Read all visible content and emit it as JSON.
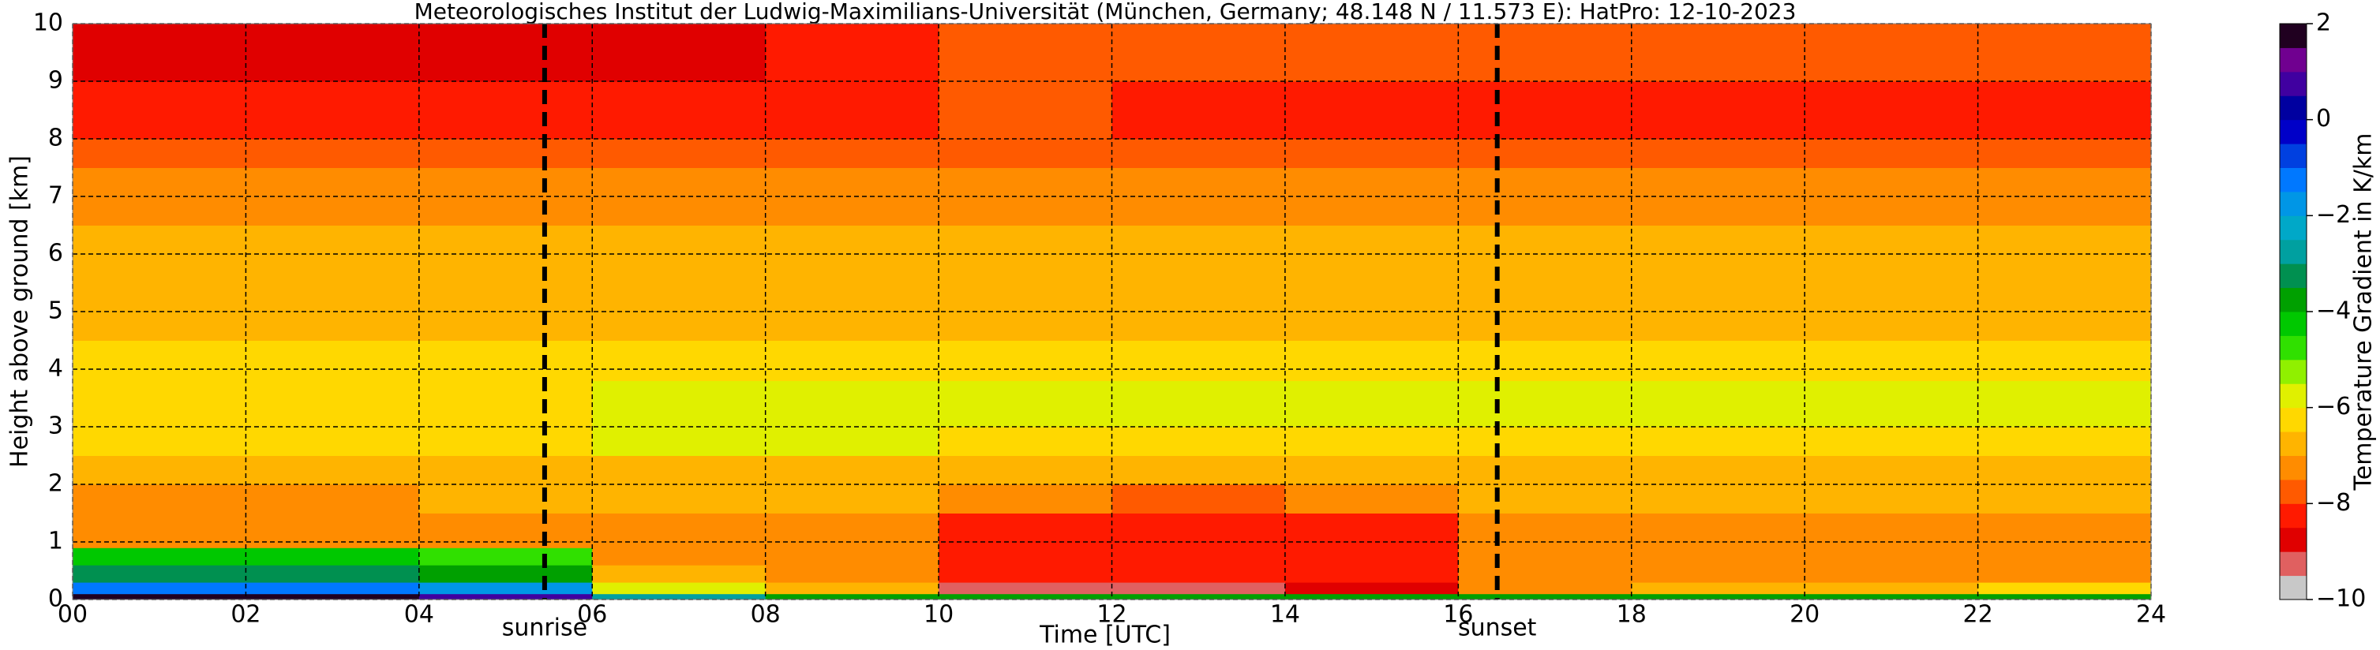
{
  "chart_data": {
    "type": "heatmap",
    "title": "Meteorologisches Institut der Ludwig-Maximilians-Universität (München, Germany; 48.148 N / 11.573 E):    HatPro: 12-10-2023",
    "xlabel": "Time [UTC]",
    "ylabel": "Height above ground [km]",
    "colorbar_label": "Temperature Gradient in K/km",
    "xlim": [
      0,
      24
    ],
    "ylim": [
      0,
      10
    ],
    "zlim": [
      -10,
      2
    ],
    "xticks": [
      {
        "value": 0,
        "label": "00"
      },
      {
        "value": 2,
        "label": "02"
      },
      {
        "value": 4,
        "label": "04"
      },
      {
        "value": 6,
        "label": "06"
      },
      {
        "value": 8,
        "label": "08"
      },
      10,
      12,
      14,
      16,
      18,
      20,
      22,
      24
    ],
    "yticks": [
      0,
      1,
      2,
      3,
      4,
      5,
      6,
      7,
      8,
      9,
      10
    ],
    "zticks": [
      {
        "value": -10,
        "label": "−10"
      },
      {
        "value": -8,
        "label": "−8"
      },
      {
        "value": -6,
        "label": "−6"
      },
      {
        "value": -4,
        "label": "−4"
      },
      {
        "value": -2,
        "label": "−2"
      },
      0,
      2
    ],
    "grid": true,
    "vlines": [
      {
        "x": 5.45,
        "label": "sunrise"
      },
      {
        "x": 16.45,
        "label": "sunset"
      }
    ],
    "colorscale": [
      {
        "value": -10,
        "color": "#c8c8c8"
      },
      {
        "value": -9.5,
        "color": "#e06060"
      },
      {
        "value": -9,
        "color": "#e00000"
      },
      {
        "value": -8.5,
        "color": "#ff1a00"
      },
      {
        "value": -8,
        "color": "#ff5a00"
      },
      {
        "value": -7.5,
        "color": "#ff8c00"
      },
      {
        "value": -7,
        "color": "#ffb400"
      },
      {
        "value": -6.5,
        "color": "#ffd800"
      },
      {
        "value": -6,
        "color": "#e0f000"
      },
      {
        "value": -5.5,
        "color": "#90f000"
      },
      {
        "value": -5,
        "color": "#30e000"
      },
      {
        "value": -4.5,
        "color": "#00c800"
      },
      {
        "value": -4,
        "color": "#00a000"
      },
      {
        "value": -3.5,
        "color": "#009050"
      },
      {
        "value": -3,
        "color": "#00a0a0"
      },
      {
        "value": -2.5,
        "color": "#00a8c8"
      },
      {
        "value": -2,
        "color": "#0096e6"
      },
      {
        "value": -1.5,
        "color": "#0078ff"
      },
      {
        "value": -1,
        "color": "#0040e0"
      },
      {
        "value": -0.5,
        "color": "#0000c8"
      },
      {
        "value": 0,
        "color": "#0000a0"
      },
      {
        "value": 0.5,
        "color": "#4000a0"
      },
      {
        "value": 1,
        "color": "#700090"
      },
      {
        "value": 1.5,
        "color": "#200020"
      }
    ],
    "x_edges": [
      0,
      2,
      4,
      6,
      8,
      10,
      12,
      14,
      16,
      18,
      20,
      22,
      24
    ],
    "y_edges": [
      0,
      0.1,
      0.3,
      0.6,
      0.9,
      1.5,
      2,
      2.5,
      3,
      3.8,
      4.5,
      5.5,
      6.5,
      7.5,
      8,
      9,
      10
    ],
    "z": [
      [
        1.5,
        1.5,
        0.5,
        -3,
        -4,
        -4,
        -4,
        -4,
        -4,
        -4,
        -4,
        -4
      ],
      [
        -1.5,
        -1.5,
        -2,
        -6,
        -7,
        -9.5,
        -9.5,
        -9,
        -7.5,
        -7,
        -7,
        -6.5
      ],
      [
        -3.5,
        -3.5,
        -4,
        -7,
        -7.5,
        -8.5,
        -8.5,
        -8.5,
        -7.5,
        -7.5,
        -7.5,
        -7.5
      ],
      [
        -4.5,
        -4.5,
        -5,
        -7.5,
        -7.5,
        -8.5,
        -8.5,
        -8.5,
        -7.5,
        -7.5,
        -7.5,
        -7.5
      ],
      [
        -7.5,
        -7.5,
        -7.5,
        -7.5,
        -7.5,
        -8.5,
        -8.5,
        -8.2,
        -7.5,
        -7.5,
        -7.5,
        -7.5
      ],
      [
        -7.2,
        -7.2,
        -7,
        -7,
        -7,
        -7.5,
        -7.8,
        -7.5,
        -7,
        -7,
        -7,
        -7
      ],
      [
        -6.8,
        -6.8,
        -6.8,
        -6.8,
        -6.8,
        -6.8,
        -6.8,
        -6.8,
        -6.8,
        -6.8,
        -6.8,
        -6.8
      ],
      [
        -6.3,
        -6.3,
        -6.3,
        -6,
        -6,
        -6.3,
        -6.3,
        -6.3,
        -6.3,
        -6.3,
        -6.3,
        -6.3
      ],
      [
        -6.3,
        -6.3,
        -6.2,
        -6,
        -6,
        -5.8,
        -5.8,
        -5.8,
        -5.8,
        -5.8,
        -5.8,
        -5.8
      ],
      [
        -6.5,
        -6.5,
        -6.5,
        -6.5,
        -6.5,
        -6.5,
        -6.5,
        -6.5,
        -6.5,
        -6.5,
        -6.5,
        -6.5
      ],
      [
        -6.8,
        -6.8,
        -6.8,
        -6.8,
        -6.8,
        -6.8,
        -6.8,
        -6.8,
        -6.8,
        -6.8,
        -6.8,
        -6.8
      ],
      [
        -6.9,
        -6.9,
        -6.9,
        -6.9,
        -6.9,
        -6.9,
        -6.9,
        -6.9,
        -6.9,
        -6.9,
        -6.9,
        -6.9
      ],
      [
        -7.2,
        -7.2,
        -7.2,
        -7.2,
        -7.2,
        -7.2,
        -7.2,
        -7.2,
        -7.2,
        -7.2,
        -7.2,
        -7.2
      ],
      [
        -7.6,
        -7.6,
        -7.6,
        -7.6,
        -7.6,
        -7.6,
        -7.6,
        -7.6,
        -7.6,
        -7.6,
        -7.6,
        -7.6
      ],
      [
        -8.2,
        -8.2,
        -8.2,
        -8.2,
        -8.2,
        -7.8,
        -8.2,
        -8.2,
        -8.2,
        -8.2,
        -8.2,
        -8.2
      ],
      [
        -8.8,
        -8.8,
        -8.8,
        -8.8,
        -8.5,
        -7.8,
        -7.8,
        -7.8,
        -7.8,
        -7.8,
        -7.8,
        -7.8
      ]
    ]
  }
}
